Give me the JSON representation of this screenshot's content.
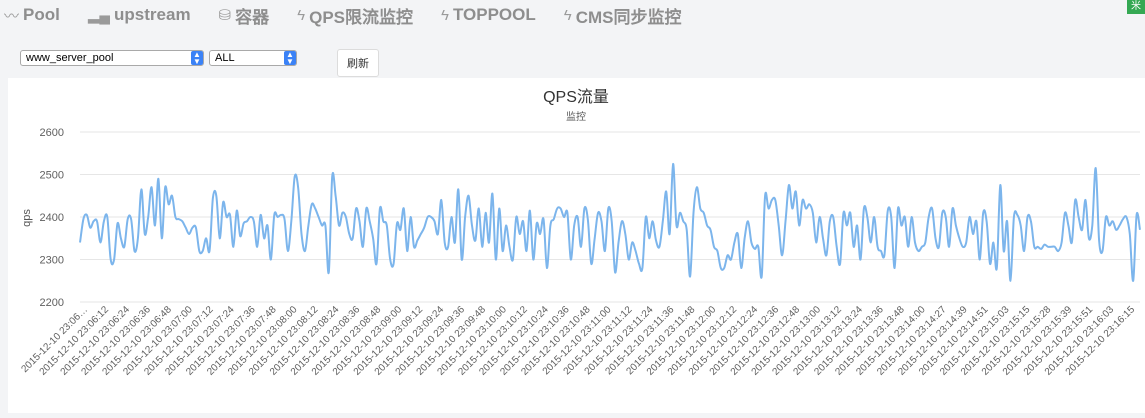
{
  "nav": {
    "items": [
      {
        "label": "Pool",
        "icon": "line-chart-icon"
      },
      {
        "label": "upstream",
        "icon": "bar-chart-icon"
      },
      {
        "label": "容器",
        "icon": "database-icon"
      },
      {
        "label": "QPS限流监控",
        "icon": "lightning-icon"
      },
      {
        "label": "TOPPOOL",
        "icon": "lightning-icon"
      },
      {
        "label": "CMS同步监控",
        "icon": "lightning-icon"
      }
    ]
  },
  "controls": {
    "pool_select": "www_server_pool",
    "scope_select": "ALL",
    "refresh_label": "刷新"
  },
  "colors": {
    "line": "#7cb5ec",
    "grid": "#e6e6e6"
  },
  "chart_data": {
    "type": "line",
    "title": "QPS流量",
    "subtitle": "监控",
    "ylabel": "qps",
    "ylim": [
      2200,
      2600
    ],
    "yticks": [
      2200,
      2300,
      2400,
      2500,
      2600
    ],
    "xlabels": [
      "2015-12-10 23:06…",
      "2015-12-10 23:06:12",
      "2015-12-10 23:06:24",
      "2015-12-10 23:06:36",
      "2015-12-10 23:06:48",
      "2015-12-10 23:07:00",
      "2015-12-10 23:07:12",
      "2015-12-10 23:07:24",
      "2015-12-10 23:07:36",
      "2015-12-10 23:07:48",
      "2015-12-10 23:08:00",
      "2015-12-10 23:08:12",
      "2015-12-10 23:08:24",
      "2015-12-10 23:08:36",
      "2015-12-10 23:08:48",
      "2015-12-10 23:09:00",
      "2015-12-10 23:09:12",
      "2015-12-10 23:09:24",
      "2015-12-10 23:09:36",
      "2015-12-10 23:09:48",
      "2015-12-10 23:10:00",
      "2015-12-10 23:10:12",
      "2015-12-10 23:10:24",
      "2015-12-10 23:10:36",
      "2015-12-10 23:10:48",
      "2015-12-10 23:11:00",
      "2015-12-10 23:11:12",
      "2015-12-10 23:11:24",
      "2015-12-10 23:11:36",
      "2015-12-10 23:11:48",
      "2015-12-10 23:12:00",
      "2015-12-10 23:12:12",
      "2015-12-10 23:12:24",
      "2015-12-10 23:12:36",
      "2015-12-10 23:12:48",
      "2015-12-10 23:13:00",
      "2015-12-10 23:13:12",
      "2015-12-10 23:13:24",
      "2015-12-10 23:13:36",
      "2015-12-10 23:13:48",
      "2015-12-10 23:14:00",
      "2015-12-10 23:14:27",
      "2015-12-10 23:14:39",
      "2015-12-10 23:14:51",
      "2015-12-10 23:15:03",
      "2015-12-10 23:15:15",
      "2015-12-10 23:15:28",
      "2015-12-10 23:15:39",
      "2015-12-10 23:15:51",
      "2015-12-10 23:16:03",
      "2015-12-10 23:16:15"
    ],
    "values": [
      2340,
      2395,
      2405,
      2375,
      2390,
      2390,
      2340,
      2390,
      2400,
      2300,
      2300,
      2385,
      2350,
      2330,
      2395,
      2395,
      2320,
      2350,
      2465,
      2360,
      2400,
      2470,
      2380,
      2490,
      2350,
      2470,
      2430,
      2450,
      2400,
      2395,
      2390,
      2375,
      2360,
      2375,
      2375,
      2320,
      2320,
      2350,
      2320,
      2445,
      2450,
      2350,
      2435,
      2400,
      2405,
      2330,
      2415,
      2355,
      2385,
      2390,
      2400,
      2390,
      2330,
      2405,
      2350,
      2380,
      2300,
      2405,
      2400,
      2405,
      2395,
      2320,
      2390,
      2495,
      2470,
      2360,
      2320,
      2380,
      2430,
      2420,
      2400,
      2380,
      2380,
      2270,
      2495,
      2450,
      2380,
      2410,
      2400,
      2360,
      2350,
      2420,
      2390,
      2330,
      2420,
      2390,
      2350,
      2290,
      2420,
      2390,
      2380,
      2300,
      2290,
      2385,
      2370,
      2420,
      2320,
      2400,
      2330,
      2345,
      2360,
      2375,
      2400,
      2400,
      2390,
      2360,
      2440,
      2340,
      2330,
      2400,
      2340,
      2465,
      2300,
      2400,
      2450,
      2380,
      2345,
      2420,
      2330,
      2410,
      2340,
      2455,
      2300,
      2420,
      2320,
      2380,
      2330,
      2300,
      2400,
      2360,
      2390,
      2320,
      2415,
      2300,
      2385,
      2360,
      2395,
      2280,
      2380,
      2395,
      2420,
      2420,
      2400,
      2410,
      2300,
      2380,
      2400,
      2330,
      2420,
      2395,
      2290,
      2350,
      2410,
      2390,
      2320,
      2420,
      2390,
      2270,
      2340,
      2390,
      2360,
      2300,
      2340,
      2320,
      2290,
      2280,
      2400,
      2350,
      2390,
      2345,
      2330,
      2390,
      2460,
      2360,
      2525,
      2380,
      2410,
      2390,
      2370,
      2260,
      2410,
      2470,
      2420,
      2410,
      2380,
      2370,
      2330,
      2320,
      2280,
      2280,
      2310,
      2300,
      2340,
      2360,
      2280,
      2350,
      2390,
      2340,
      2325,
      2330,
      2260,
      2450,
      2420,
      2440,
      2440,
      2380,
      2310,
      2390,
      2475,
      2420,
      2460,
      2380,
      2440,
      2420,
      2430,
      2410,
      2340,
      2400,
      2350,
      2310,
      2390,
      2400,
      2330,
      2290,
      2410,
      2380,
      2410,
      2330,
      2380,
      2300,
      2420,
      2400,
      2340,
      2400,
      2330,
      2320,
      2310,
      2415,
      2400,
      2280,
      2420,
      2380,
      2400,
      2330,
      2400,
      2340,
      2320,
      2330,
      2340,
      2400,
      2420,
      2350,
      2330,
      2410,
      2400,
      2330,
      2420,
      2380,
      2350,
      2330,
      2340,
      2400,
      2360,
      2390,
      2300,
      2410,
      2390,
      2290,
      2340,
      2280,
      2475,
      2320,
      2390,
      2250,
      2400,
      2405,
      2380,
      2320,
      2400,
      2390,
      2330,
      2330,
      2325,
      2335,
      2330,
      2330,
      2330,
      2320,
      2340,
      2410,
      2380,
      2340,
      2440,
      2400,
      2370,
      2440,
      2350,
      2380,
      2515,
      2345,
      2320,
      2400,
      2380,
      2390,
      2370,
      2380,
      2395,
      2400,
      2360,
      2250,
      2405,
      2370
    ]
  }
}
